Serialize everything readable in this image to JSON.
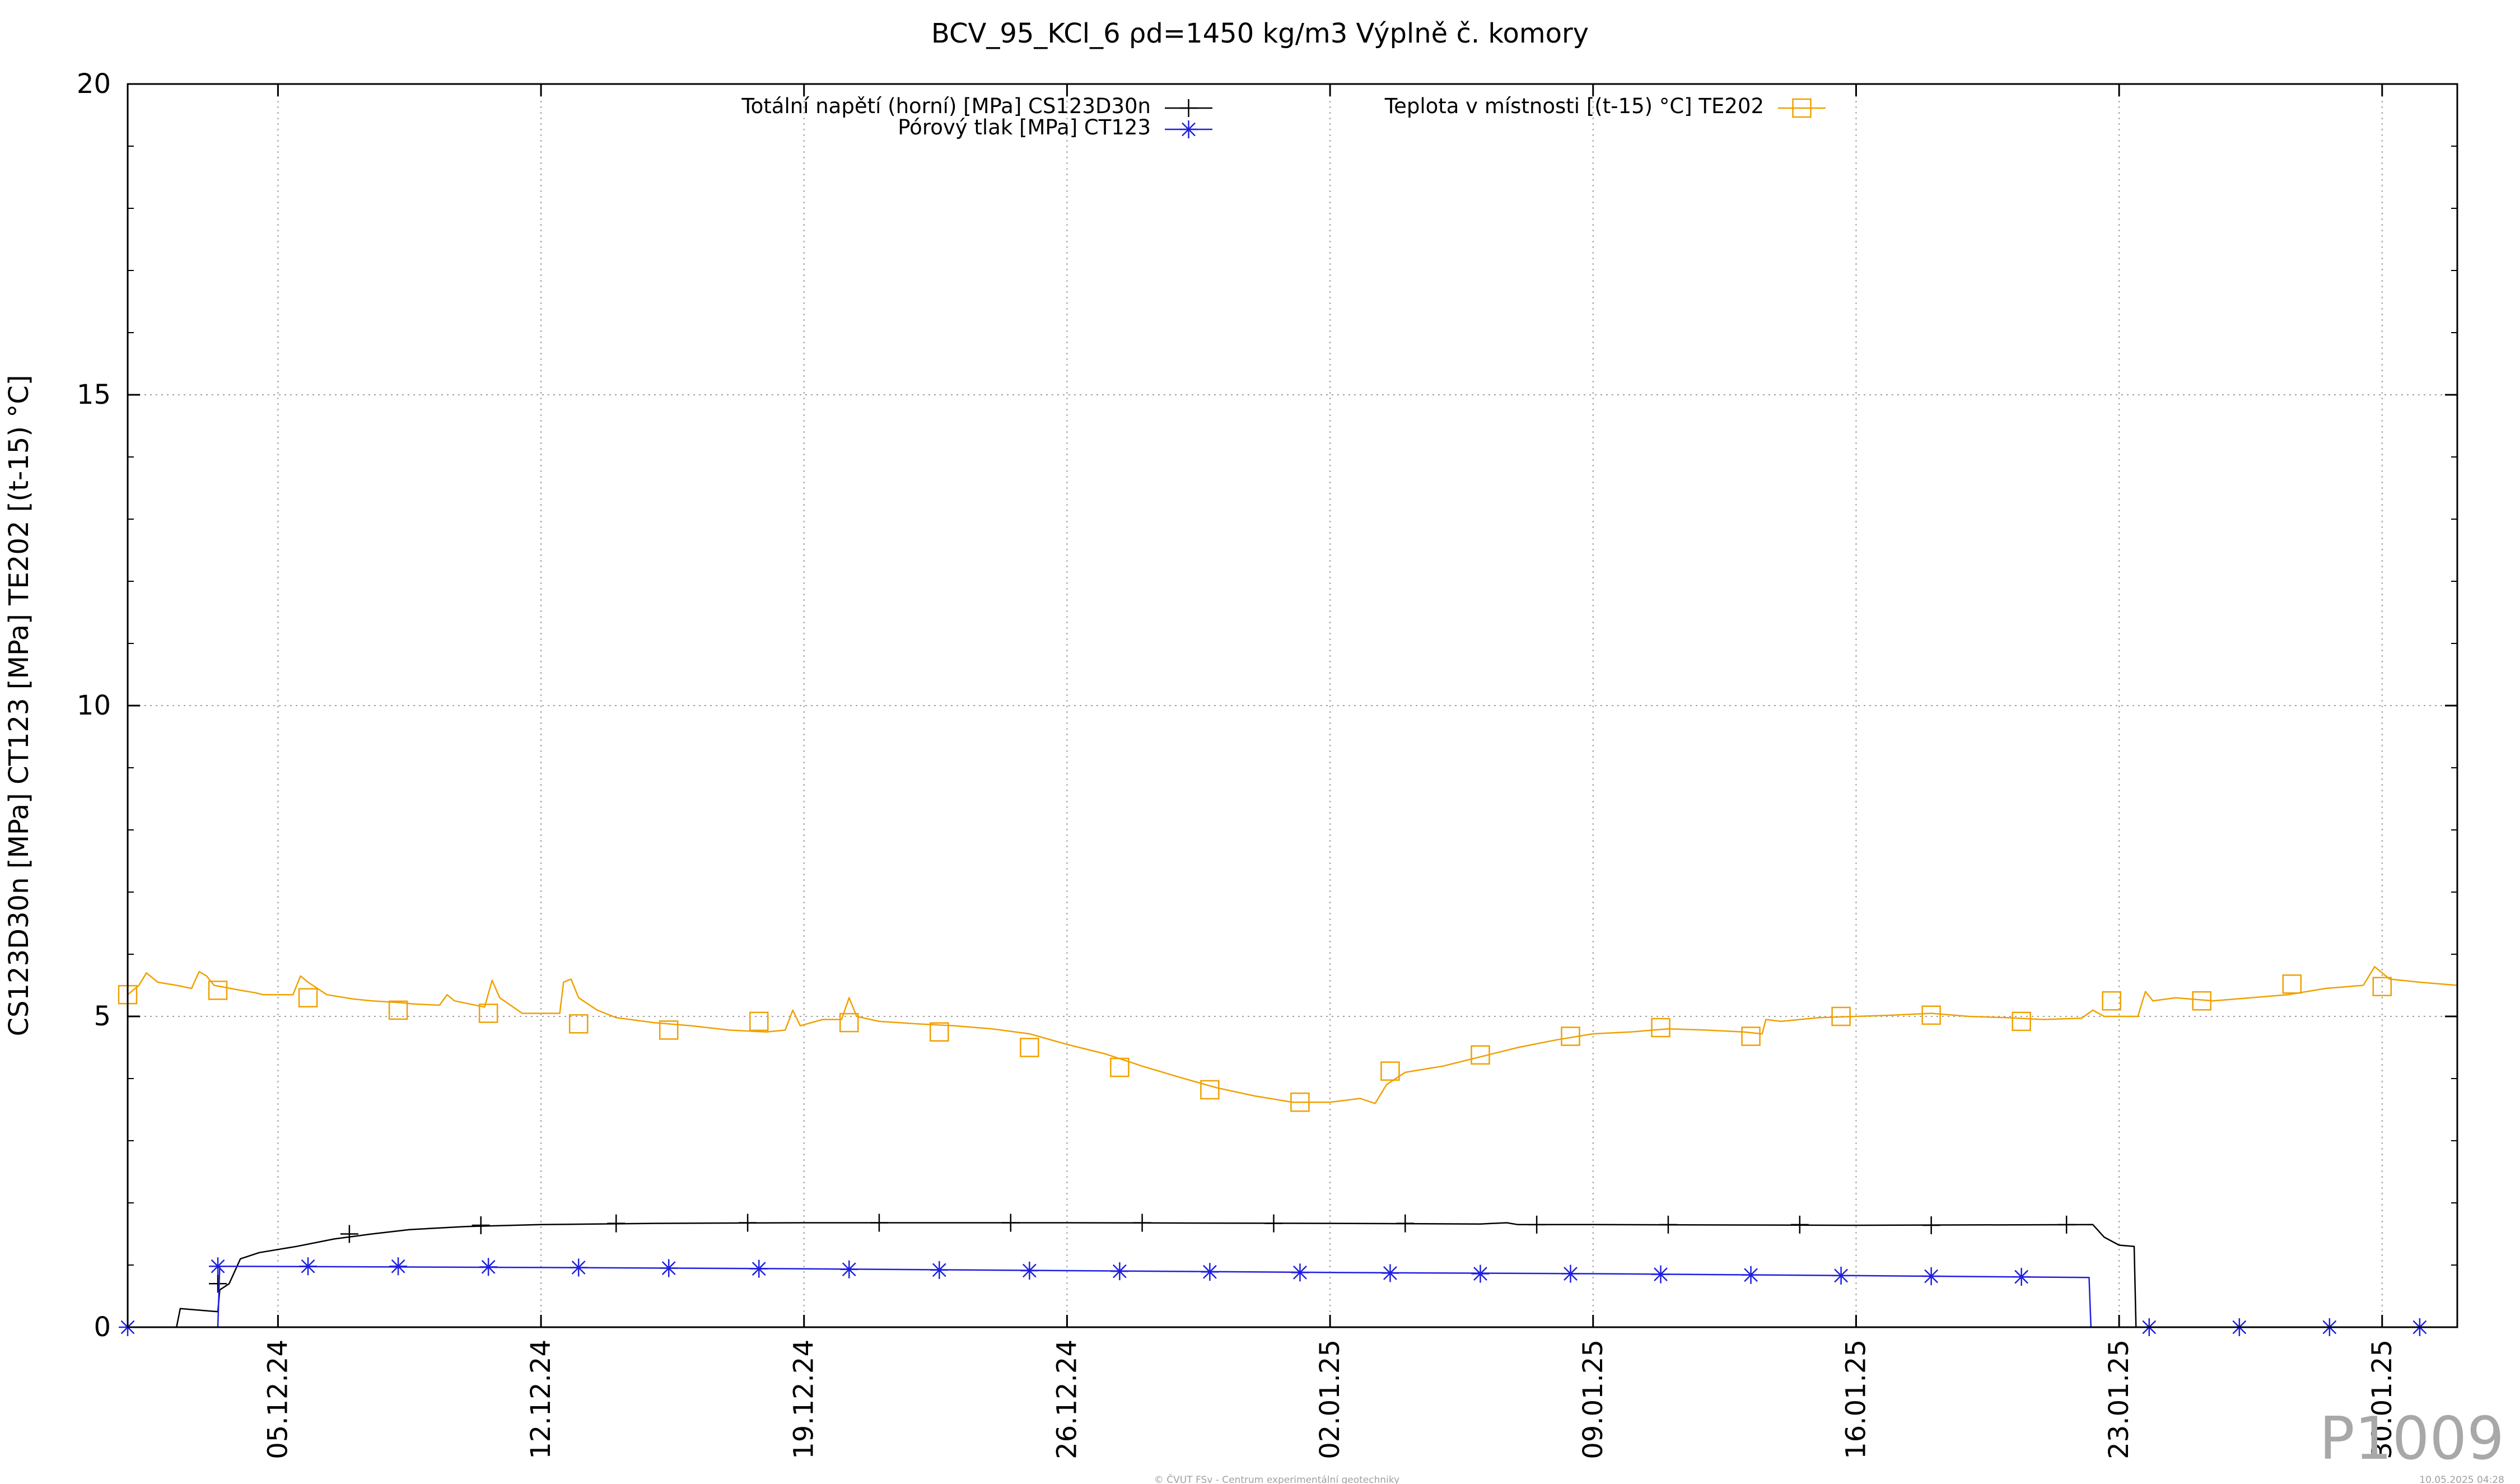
{
  "chart_data": {
    "type": "line",
    "title": "BCV_95_KCl_6 ρd=1450 kg/m3 Výplně č. komory",
    "ylabel": "CS123D30n [MPa] CT123 [MPa] TE202 [(t-15) °C]",
    "xlabel": "",
    "ylim": [
      0,
      20
    ],
    "yticks": [
      0,
      5,
      10,
      15,
      20
    ],
    "x_unit": "date",
    "xlim": [
      "2024-12-01",
      "2025-02-01"
    ],
    "xticks": [
      {
        "date": "2024-12-05",
        "label": "05.12.24"
      },
      {
        "date": "2024-12-12",
        "label": "12.12.24"
      },
      {
        "date": "2024-12-19",
        "label": "19.12.24"
      },
      {
        "date": "2024-12-26",
        "label": "26.12.24"
      },
      {
        "date": "2025-01-02",
        "label": "02.01.25"
      },
      {
        "date": "2025-01-09",
        "label": "09.01.25"
      },
      {
        "date": "2025-01-16",
        "label": "16.01.25"
      },
      {
        "date": "2025-01-23",
        "label": "23.01.25"
      },
      {
        "date": "2025-01-30",
        "label": "30.01.25"
      }
    ],
    "grid": true,
    "legend_position": "top",
    "series": [
      {
        "name": "Totální napětí (horní) [MPa] CS123D30n",
        "color": "#000000",
        "marker": "plus",
        "points": [
          [
            "2024-12-01",
            0.0
          ],
          [
            "2024-12-02.3",
            0.0
          ],
          [
            "2024-12-02.4",
            0.3
          ],
          [
            "2024-12-03.4",
            0.25
          ],
          [
            "2024-12-03.45",
            0.6
          ],
          [
            "2024-12-03.7",
            0.7
          ],
          [
            "2024-12-04.0",
            1.1
          ],
          [
            "2024-12-04.5",
            1.2
          ],
          [
            "2024-12-05.5",
            1.3
          ],
          [
            "2024-12-06.5",
            1.42
          ],
          [
            "2024-12-07.5",
            1.5
          ],
          [
            "2024-12-08.5",
            1.57
          ],
          [
            "2024-12-10.0",
            1.62
          ],
          [
            "2024-12-12.0",
            1.65
          ],
          [
            "2024-12-15.0",
            1.67
          ],
          [
            "2024-12-19.0",
            1.68
          ],
          [
            "2024-12-26.0",
            1.68
          ],
          [
            "2025-01-02.0",
            1.67
          ],
          [
            "2025-01-06.0",
            1.66
          ],
          [
            "2025-01-06.7",
            1.68
          ],
          [
            "2025-01-07.0",
            1.65
          ],
          [
            "2025-01-09.0",
            1.65
          ],
          [
            "2025-01-16.0",
            1.64
          ],
          [
            "2025-01-22.3",
            1.65
          ],
          [
            "2025-01-22.6",
            1.45
          ],
          [
            "2025-01-23.0",
            1.32
          ],
          [
            "2025-01-23.4",
            1.3
          ],
          [
            "2025-01-23.45",
            0.0
          ],
          [
            "2025-02-01",
            0.0
          ]
        ],
        "marker_points": [
          [
            "2024-12-03.4",
            0.7
          ],
          [
            "2024-12-06.9",
            1.5
          ],
          [
            "2024-12-10.4",
            1.64
          ],
          [
            "2024-12-14.0",
            1.67
          ],
          [
            "2024-12-17.5",
            1.68
          ],
          [
            "2024-12-21.0",
            1.68
          ],
          [
            "2024-12-24.5",
            1.68
          ],
          [
            "2024-12-28.0",
            1.68
          ],
          [
            "2024-12-31.5",
            1.67
          ],
          [
            "2025-01-04.0",
            1.67
          ],
          [
            "2025-01-07.5",
            1.65
          ],
          [
            "2025-01-11.0",
            1.65
          ],
          [
            "2025-01-14.5",
            1.65
          ],
          [
            "2025-01-18.0",
            1.64
          ],
          [
            "2025-01-21.6",
            1.65
          ]
        ]
      },
      {
        "name": "Pórový tlak [MPa] CT123",
        "color": "#1f1fe0",
        "marker": "star",
        "points": [
          [
            "2024-12-01",
            0.0
          ],
          [
            "2024-12-03.4",
            0.0
          ],
          [
            "2024-12-03.45",
            0.98
          ],
          [
            "2024-12-12.0",
            0.96
          ],
          [
            "2024-12-19.0",
            0.94
          ],
          [
            "2024-12-26.0",
            0.91
          ],
          [
            "2025-01-02.0",
            0.88
          ],
          [
            "2025-01-09.0",
            0.86
          ],
          [
            "2025-01-16.0",
            0.83
          ],
          [
            "2025-01-22.2",
            0.8
          ],
          [
            "2025-01-22.25",
            0.0
          ],
          [
            "2025-02-01",
            0.0
          ]
        ],
        "marker_points": [
          [
            "2024-12-01.0",
            0.0
          ],
          [
            "2024-12-03.4",
            0.98
          ],
          [
            "2024-12-05.8",
            0.98
          ],
          [
            "2024-12-08.2",
            0.98
          ],
          [
            "2024-12-10.6",
            0.97
          ],
          [
            "2024-12-13.0",
            0.96
          ],
          [
            "2024-12-15.4",
            0.95
          ],
          [
            "2024-12-17.8",
            0.94
          ],
          [
            "2024-12-20.2",
            0.93
          ],
          [
            "2024-12-22.6",
            0.92
          ],
          [
            "2024-12-25.0",
            0.91
          ],
          [
            "2024-12-27.4",
            0.9
          ],
          [
            "2024-12-29.8",
            0.89
          ],
          [
            "2025-01-01.2",
            0.88
          ],
          [
            "2025-01-03.6",
            0.87
          ],
          [
            "2025-01-06.0",
            0.86
          ],
          [
            "2025-01-08.4",
            0.86
          ],
          [
            "2025-01-10.8",
            0.85
          ],
          [
            "2025-01-13.2",
            0.84
          ],
          [
            "2025-01-15.6",
            0.83
          ],
          [
            "2025-01-18.0",
            0.82
          ],
          [
            "2025-01-20.4",
            0.81
          ],
          [
            "2025-01-23.8",
            0.0
          ],
          [
            "2025-01-26.2",
            0.0
          ],
          [
            "2025-01-28.6",
            0.0
          ],
          [
            "2025-01-31.0",
            0.0
          ]
        ]
      },
      {
        "name": "Teplota v místnosti [(t-15) °C] TE202",
        "color": "#f0a000",
        "marker": "square",
        "points": [
          [
            "2024-12-01.0",
            5.35
          ],
          [
            "2024-12-01.3",
            5.5
          ],
          [
            "2024-12-01.5",
            5.7
          ],
          [
            "2024-12-01.8",
            5.55
          ],
          [
            "2024-12-02.3",
            5.5
          ],
          [
            "2024-12-02.7",
            5.45
          ],
          [
            "2024-12-02.9",
            5.72
          ],
          [
            "2024-12-03.1",
            5.65
          ],
          [
            "2024-12-03.3",
            5.5
          ],
          [
            "2024-12-04.0",
            5.42
          ],
          [
            "2024-12-04.4",
            5.38
          ],
          [
            "2024-12-04.6",
            5.35
          ],
          [
            "2024-12-05.4",
            5.35
          ],
          [
            "2024-12-05.6",
            5.65
          ],
          [
            "2024-12-05.8",
            5.55
          ],
          [
            "2024-12-06.3",
            5.35
          ],
          [
            "2024-12-07.0",
            5.28
          ],
          [
            "2024-12-07.5",
            5.25
          ],
          [
            "2024-12-08.3",
            5.22
          ],
          [
            "2024-12-08.6",
            5.2
          ],
          [
            "2024-12-09.3",
            5.18
          ],
          [
            "2024-12-09.5",
            5.35
          ],
          [
            "2024-12-09.7",
            5.25
          ],
          [
            "2024-12-10.5",
            5.15
          ],
          [
            "2024-12-10.7",
            5.58
          ],
          [
            "2024-12-10.9",
            5.3
          ],
          [
            "2024-12-11.5",
            5.05
          ],
          [
            "2024-12-12.5",
            5.05
          ],
          [
            "2024-12-12.6",
            5.55
          ],
          [
            "2024-12-12.8",
            5.6
          ],
          [
            "2024-12-13.0",
            5.3
          ],
          [
            "2024-12-13.5",
            5.1
          ],
          [
            "2024-12-14.0",
            4.98
          ],
          [
            "2024-12-15.0",
            4.9
          ],
          [
            "2024-12-16.0",
            4.85
          ],
          [
            "2024-12-17.0",
            4.78
          ],
          [
            "2024-12-18.0",
            4.75
          ],
          [
            "2024-12-18.5",
            4.78
          ],
          [
            "2024-12-18.7",
            5.1
          ],
          [
            "2024-12-18.9",
            4.85
          ],
          [
            "2024-12-19.5",
            4.95
          ],
          [
            "2024-12-20.0",
            4.95
          ],
          [
            "2024-12-20.2",
            5.3
          ],
          [
            "2024-12-20.4",
            5.0
          ],
          [
            "2024-12-21.0",
            4.92
          ],
          [
            "2024-12-22.0",
            4.88
          ],
          [
            "2024-12-23.0",
            4.85
          ],
          [
            "2024-12-24.0",
            4.8
          ],
          [
            "2024-12-25.0",
            4.72
          ],
          [
            "2024-12-26.0",
            4.55
          ],
          [
            "2024-12-27.0",
            4.4
          ],
          [
            "2024-12-28.0",
            4.2
          ],
          [
            "2024-12-29.0",
            4.02
          ],
          [
            "2024-12-30.0",
            3.85
          ],
          [
            "2024-12-31.0",
            3.72
          ],
          [
            "2025-01-01.0",
            3.62
          ],
          [
            "2025-01-02.0",
            3.62
          ],
          [
            "2025-01-02.8",
            3.68
          ],
          [
            "2025-01-03.2",
            3.6
          ],
          [
            "2025-01-03.5",
            3.9
          ],
          [
            "2025-01-04.0",
            4.1
          ],
          [
            "2025-01-05.0",
            4.2
          ],
          [
            "2025-01-06.0",
            4.35
          ],
          [
            "2025-01-07.0",
            4.5
          ],
          [
            "2025-01-08.0",
            4.62
          ],
          [
            "2025-01-09.0",
            4.72
          ],
          [
            "2025-01-10.0",
            4.75
          ],
          [
            "2025-01-11.0",
            4.8
          ],
          [
            "2025-01-12.0",
            4.78
          ],
          [
            "2025-01-13.0",
            4.75
          ],
          [
            "2025-01-13.5",
            4.72
          ],
          [
            "2025-01-13.6",
            4.95
          ],
          [
            "2025-01-14.0",
            4.92
          ],
          [
            "2025-01-15.0",
            4.98
          ],
          [
            "2025-01-16.0",
            5.0
          ],
          [
            "2025-01-17.0",
            5.02
          ],
          [
            "2025-01-18.0",
            5.05
          ],
          [
            "2025-01-19.0",
            5.0
          ],
          [
            "2025-01-20.0",
            4.98
          ],
          [
            "2025-01-21.0",
            4.95
          ],
          [
            "2025-01-22.0",
            4.97
          ],
          [
            "2025-01-22.3",
            5.1
          ],
          [
            "2025-01-22.6",
            5.0
          ],
          [
            "2025-01-23.5",
            5.0
          ],
          [
            "2025-01-23.7",
            5.4
          ],
          [
            "2025-01-23.9",
            5.25
          ],
          [
            "2025-01-24.5",
            5.3
          ],
          [
            "2025-01-25.5",
            5.25
          ],
          [
            "2025-01-26.5",
            5.3
          ],
          [
            "2025-01-27.5",
            5.35
          ],
          [
            "2025-01-28.5",
            5.45
          ],
          [
            "2025-01-29.5",
            5.5
          ],
          [
            "2025-01-29.8",
            5.8
          ],
          [
            "2025-01-30.2",
            5.6
          ],
          [
            "2025-01-31.0",
            5.55
          ],
          [
            "2025-02-01.0",
            5.5
          ]
        ],
        "marker_points": [
          [
            "2024-12-01.0",
            5.35
          ],
          [
            "2024-12-03.4",
            5.42
          ],
          [
            "2024-12-05.8",
            5.3
          ],
          [
            "2024-12-08.2",
            5.1
          ],
          [
            "2024-12-10.6",
            5.05
          ],
          [
            "2024-12-13.0",
            4.88
          ],
          [
            "2024-12-15.4",
            4.78
          ],
          [
            "2024-12-17.8",
            4.92
          ],
          [
            "2024-12-20.2",
            4.9
          ],
          [
            "2024-12-22.6",
            4.75
          ],
          [
            "2024-12-25.0",
            4.5
          ],
          [
            "2024-12-27.4",
            4.18
          ],
          [
            "2024-12-29.8",
            3.82
          ],
          [
            "2025-01-01.2",
            3.62
          ],
          [
            "2025-01-03.6",
            4.12
          ],
          [
            "2025-01-06.0",
            4.38
          ],
          [
            "2025-01-08.4",
            4.68
          ],
          [
            "2025-01-10.8",
            4.82
          ],
          [
            "2025-01-13.2",
            4.68
          ],
          [
            "2025-01-15.6",
            5.0
          ],
          [
            "2025-01-18.0",
            5.02
          ],
          [
            "2025-01-20.4",
            4.92
          ],
          [
            "2025-01-22.8",
            5.25
          ],
          [
            "2025-01-25.2",
            5.25
          ],
          [
            "2025-01-27.6",
            5.52
          ],
          [
            "2025-01-30.0",
            5.48
          ]
        ]
      }
    ]
  },
  "footer": {
    "credit": "© ČVUT FSv - Centrum experimentální geotechniky",
    "timestamp": "10.05.2025 04:28"
  },
  "watermark": "P1009"
}
